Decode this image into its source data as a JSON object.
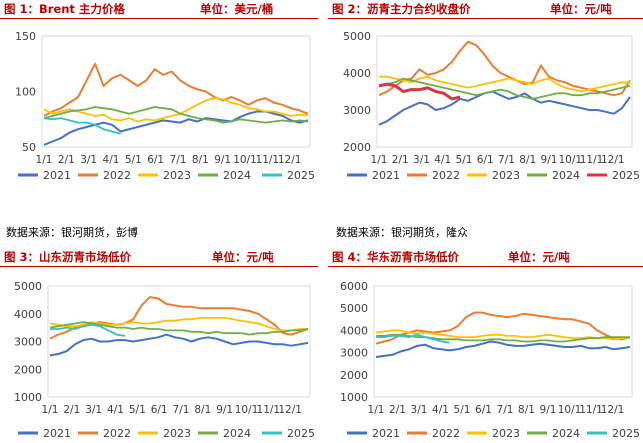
{
  "panels": [
    {
      "title": "图 1：Brent 主力价格",
      "unit": "单位：美元/桶"
    },
    {
      "title": "图 2：沥青主力合约收盘价",
      "unit": "单位：元/吨"
    },
    {
      "title": "图 3：山东沥青市场低价",
      "unit": "单位：元/吨"
    },
    {
      "title": "图 4：华东沥青市场低价",
      "unit": "单位：元/吨"
    }
  ],
  "sources": {
    "left": "数据来源：银河期货，彭博",
    "right": "数据来源：银河期货，隆众"
  },
  "colors": {
    "2021": "#4472c4",
    "2022": "#ed7d31",
    "2023": "#ffc000",
    "2024": "#70ad47",
    "2025_teal": "#2ec4c4",
    "2025_red": "#dc3545",
    "accent": "#c00000"
  },
  "chart_data": [
    {
      "type": "line",
      "x_ticks": [
        "1/1",
        "2/1",
        "3/1",
        "4/1",
        "5/1",
        "6/1",
        "7/1",
        "8/1",
        "9/1",
        "10/1",
        "11/1",
        "12/1"
      ],
      "ylim": [
        50,
        150
      ],
      "y_ticks": [
        "50",
        "100",
        "150"
      ],
      "series": [
        {
          "name": "2021",
          "color": "#4472c4",
          "values": [
            52,
            55,
            58,
            63,
            66,
            68,
            70,
            72,
            70,
            64,
            66,
            68,
            70,
            72,
            74,
            73,
            72,
            75,
            73,
            76,
            75,
            74,
            73,
            77,
            80,
            82,
            82,
            80,
            78,
            74,
            72,
            74
          ]
        },
        {
          "name": "2022",
          "color": "#ed7d31",
          "values": [
            78,
            82,
            85,
            90,
            95,
            110,
            125,
            105,
            112,
            115,
            110,
            105,
            110,
            120,
            115,
            118,
            110,
            105,
            102,
            100,
            95,
            92,
            95,
            92,
            88,
            92,
            94,
            90,
            88,
            85,
            83,
            80
          ]
        },
        {
          "name": "2023",
          "color": "#ffc000",
          "values": [
            84,
            80,
            82,
            84,
            82,
            80,
            78,
            79,
            75,
            74,
            76,
            73,
            75,
            74,
            76,
            78,
            80,
            84,
            88,
            92,
            94,
            93,
            90,
            88,
            85,
            84,
            82,
            82,
            80,
            78,
            79,
            79
          ]
        },
        {
          "name": "2024",
          "color": "#70ad47",
          "values": [
            76,
            78,
            80,
            82,
            83,
            84,
            86,
            85,
            84,
            82,
            80,
            82,
            84,
            86,
            85,
            84,
            80,
            78,
            76,
            75,
            74,
            72,
            73,
            75,
            74,
            73,
            72,
            73,
            74,
            73,
            74,
            73
          ]
        },
        {
          "name": "2025",
          "color": "#2ec4c4",
          "values": [
            76,
            75,
            76,
            74,
            72,
            72,
            70,
            66,
            64,
            62
          ]
        }
      ]
    },
    {
      "type": "line",
      "x_ticks": [
        "1/1",
        "2/1",
        "3/1",
        "4/1",
        "5/1",
        "6/1",
        "7/1",
        "8/1",
        "9/1",
        "10/1",
        "11/1",
        "12/1"
      ],
      "ylim": [
        2000,
        5000
      ],
      "y_ticks": [
        "2000",
        "3000",
        "4000",
        "5000"
      ],
      "series": [
        {
          "name": "2021",
          "color": "#4472c4",
          "values": [
            2600,
            2700,
            2850,
            3000,
            3100,
            3200,
            3150,
            3000,
            3050,
            3150,
            3300,
            3250,
            3350,
            3450,
            3500,
            3400,
            3300,
            3350,
            3450,
            3300,
            3200,
            3250,
            3200,
            3150,
            3100,
            3050,
            3000,
            3000,
            2950,
            2900,
            3050,
            3350
          ]
        },
        {
          "name": "2022",
          "color": "#ed7d31",
          "values": [
            3400,
            3500,
            3650,
            3800,
            3850,
            4100,
            3950,
            4000,
            4100,
            4300,
            4600,
            4850,
            4750,
            4500,
            4200,
            4000,
            3900,
            3800,
            3700,
            3750,
            4200,
            3900,
            3800,
            3750,
            3650,
            3600,
            3550,
            3500,
            3450,
            3400,
            3450,
            3800
          ]
        },
        {
          "name": "2023",
          "color": "#ffc000",
          "values": [
            3900,
            3900,
            3850,
            3800,
            3750,
            3850,
            3900,
            3800,
            3750,
            3700,
            3650,
            3600,
            3650,
            3700,
            3750,
            3800,
            3850,
            3800,
            3750,
            3700,
            3800,
            3850,
            3700,
            3600,
            3550,
            3500,
            3550,
            3600,
            3650,
            3700,
            3750,
            3750
          ]
        },
        {
          "name": "2024",
          "color": "#70ad47",
          "values": [
            3650,
            3700,
            3750,
            3850,
            3800,
            3750,
            3700,
            3650,
            3600,
            3550,
            3500,
            3450,
            3400,
            3450,
            3500,
            3550,
            3500,
            3400,
            3350,
            3300,
            3350,
            3400,
            3450,
            3450,
            3400,
            3400,
            3450,
            3450,
            3500,
            3550,
            3600,
            3650
          ]
        },
        {
          "name": "2025",
          "color": "#dc3545",
          "values": [
            3650,
            3700,
            3650,
            3500,
            3550,
            3550,
            3600,
            3500,
            3450,
            3300,
            3350
          ]
        }
      ]
    },
    {
      "type": "line",
      "x_ticks": [
        "1/1",
        "2/1",
        "3/1",
        "4/1",
        "5/1",
        "6/1",
        "7/1",
        "8/1",
        "9/1",
        "10/1",
        "11/1",
        "12/1"
      ],
      "ylim": [
        1000,
        5000
      ],
      "y_ticks": [
        "1000",
        "2000",
        "3000",
        "4000",
        "5000"
      ],
      "series": [
        {
          "name": "2021",
          "color": "#4472c4",
          "values": [
            2500,
            2550,
            2650,
            2900,
            3050,
            3100,
            3000,
            3000,
            3050,
            3050,
            3000,
            3050,
            3100,
            3150,
            3250,
            3150,
            3100,
            3000,
            3100,
            3150,
            3100,
            3000,
            2900,
            2950,
            3000,
            3000,
            2950,
            2900,
            2900,
            2850,
            2900,
            2950
          ]
        },
        {
          "name": "2022",
          "color": "#ed7d31",
          "values": [
            3100,
            3250,
            3350,
            3500,
            3600,
            3650,
            3700,
            3650,
            3600,
            3650,
            3800,
            4300,
            4600,
            4550,
            4350,
            4300,
            4250,
            4250,
            4200,
            4200,
            4200,
            4200,
            4200,
            4150,
            4100,
            4000,
            3800,
            3600,
            3300,
            3250,
            3350,
            3450
          ]
        },
        {
          "name": "2023",
          "color": "#ffc000",
          "values": [
            3650,
            3600,
            3550,
            3550,
            3600,
            3700,
            3650,
            3600,
            3600,
            3650,
            3700,
            3650,
            3650,
            3700,
            3750,
            3750,
            3800,
            3800,
            3850,
            3850,
            3850,
            3850,
            3800,
            3750,
            3700,
            3650,
            3550,
            3450,
            3400,
            3400,
            3450,
            3450
          ]
        },
        {
          "name": "2024",
          "color": "#70ad47",
          "values": [
            3500,
            3550,
            3600,
            3650,
            3700,
            3650,
            3600,
            3550,
            3500,
            3500,
            3450,
            3500,
            3450,
            3450,
            3400,
            3400,
            3400,
            3350,
            3350,
            3300,
            3350,
            3300,
            3300,
            3300,
            3250,
            3300,
            3300,
            3350,
            3350,
            3400,
            3400,
            3450
          ]
        },
        {
          "name": "2025",
          "color": "#2ec4c4",
          "values": [
            3450,
            3450,
            3500,
            3450,
            3550,
            3600,
            3550,
            3400,
            3250,
            3200
          ]
        }
      ]
    },
    {
      "type": "line",
      "x_ticks": [
        "1/1",
        "2/1",
        "3/1",
        "4/1",
        "5/1",
        "6/1",
        "7/1",
        "8/1",
        "9/1",
        "10/1",
        "11/1",
        "12/1"
      ],
      "ylim": [
        1000,
        6000
      ],
      "y_ticks": [
        "1000",
        "2000",
        "3000",
        "4000",
        "5000",
        "6000"
      ],
      "series": [
        {
          "name": "2021",
          "color": "#4472c4",
          "values": [
            2800,
            2850,
            2900,
            3050,
            3150,
            3300,
            3350,
            3200,
            3150,
            3100,
            3150,
            3250,
            3300,
            3400,
            3500,
            3450,
            3350,
            3300,
            3300,
            3350,
            3400,
            3350,
            3300,
            3250,
            3250,
            3300,
            3200,
            3200,
            3250,
            3150,
            3200,
            3250
          ]
        },
        {
          "name": "2022",
          "color": "#ed7d31",
          "values": [
            3400,
            3500,
            3600,
            3800,
            3900,
            4000,
            3950,
            3900,
            3950,
            4000,
            4200,
            4600,
            4800,
            4800,
            4700,
            4650,
            4600,
            4650,
            4750,
            4700,
            4650,
            4600,
            4550,
            4500,
            4500,
            4400,
            4300,
            4000,
            3800,
            3650,
            3600,
            3700
          ]
        },
        {
          "name": "2023",
          "color": "#ffc000",
          "values": [
            3900,
            3950,
            4000,
            4000,
            3900,
            3850,
            3900,
            3850,
            3800,
            3750,
            3700,
            3700,
            3700,
            3750,
            3800,
            3800,
            3750,
            3750,
            3700,
            3700,
            3750,
            3800,
            3750,
            3700,
            3650,
            3650,
            3700,
            3650,
            3650,
            3600,
            3650,
            3700
          ]
        },
        {
          "name": "2024",
          "color": "#70ad47",
          "values": [
            3750,
            3750,
            3800,
            3800,
            3750,
            3700,
            3700,
            3650,
            3600,
            3600,
            3600,
            3550,
            3550,
            3550,
            3600,
            3600,
            3550,
            3550,
            3500,
            3500,
            3550,
            3550,
            3500,
            3500,
            3550,
            3600,
            3650,
            3650,
            3700,
            3700,
            3700,
            3700
          ]
        },
        {
          "name": "2025",
          "color": "#2ec4c4",
          "values": [
            3700,
            3700,
            3750,
            3750,
            3700,
            3800,
            3700,
            3600,
            3500,
            3450
          ]
        }
      ]
    }
  ]
}
